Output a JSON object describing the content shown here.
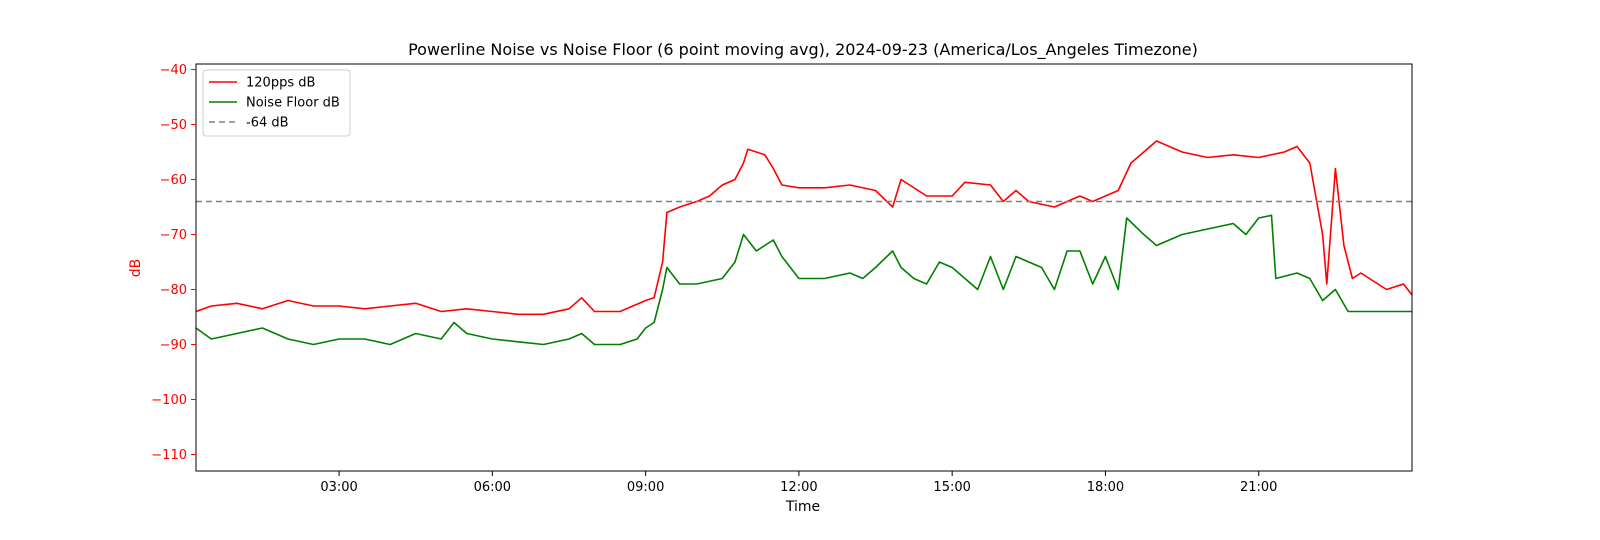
{
  "chart_data": {
    "type": "line",
    "title": "Powerline Noise vs Noise Floor (6 point moving avg), 2024-09-23 (America/Los_Angeles Timezone)",
    "xlabel": "Time",
    "ylabel": "dB",
    "ylabel_color": "#ff0000",
    "xlim": [
      "00:12",
      "24:00"
    ],
    "ylim": [
      -113,
      -39
    ],
    "x_ticks": [
      "03:00",
      "06:00",
      "09:00",
      "12:00",
      "15:00",
      "18:00",
      "21:00"
    ],
    "y_ticks": [
      -40,
      -50,
      -60,
      -70,
      -80,
      -90,
      -100,
      -110
    ],
    "grid": false,
    "legend_position": "top-left",
    "series": [
      {
        "name": "120pps dB",
        "color": "#ff0000",
        "style": "solid",
        "points": [
          [
            "00:12",
            -84
          ],
          [
            "00:30",
            -83
          ],
          [
            "01:00",
            -82.5
          ],
          [
            "01:30",
            -83.5
          ],
          [
            "02:00",
            -82
          ],
          [
            "02:30",
            -83
          ],
          [
            "03:00",
            -83
          ],
          [
            "03:30",
            -83.5
          ],
          [
            "04:00",
            -83
          ],
          [
            "04:30",
            -82.5
          ],
          [
            "05:00",
            -84
          ],
          [
            "05:30",
            -83.5
          ],
          [
            "06:00",
            -84
          ],
          [
            "06:30",
            -84.5
          ],
          [
            "07:00",
            -84.5
          ],
          [
            "07:30",
            -83.5
          ],
          [
            "07:45",
            -81.5
          ],
          [
            "08:00",
            -84
          ],
          [
            "08:30",
            -84
          ],
          [
            "09:00",
            -82
          ],
          [
            "09:10",
            -81.5
          ],
          [
            "09:20",
            -75
          ],
          [
            "09:25",
            -66
          ],
          [
            "09:40",
            -65
          ],
          [
            "10:00",
            -64
          ],
          [
            "10:15",
            -63
          ],
          [
            "10:30",
            -61
          ],
          [
            "10:45",
            -60
          ],
          [
            "10:55",
            -57
          ],
          [
            "11:00",
            -54.5
          ],
          [
            "11:20",
            -55.5
          ],
          [
            "11:30",
            -58
          ],
          [
            "11:40",
            -61
          ],
          [
            "12:00",
            -61.5
          ],
          [
            "12:30",
            -61.5
          ],
          [
            "13:00",
            -61
          ],
          [
            "13:30",
            -62
          ],
          [
            "13:50",
            -65
          ],
          [
            "14:00",
            -60
          ],
          [
            "14:30",
            -63
          ],
          [
            "15:00",
            -63
          ],
          [
            "15:15",
            -60.5
          ],
          [
            "15:45",
            -61
          ],
          [
            "16:00",
            -64
          ],
          [
            "16:15",
            -62
          ],
          [
            "16:30",
            -64
          ],
          [
            "17:00",
            -65
          ],
          [
            "17:30",
            -63
          ],
          [
            "17:45",
            -64
          ],
          [
            "18:00",
            -63
          ],
          [
            "18:15",
            -62
          ],
          [
            "18:30",
            -57
          ],
          [
            "18:45",
            -55
          ],
          [
            "19:00",
            -53
          ],
          [
            "19:30",
            -55
          ],
          [
            "20:00",
            -56
          ],
          [
            "20:30",
            -55.5
          ],
          [
            "21:00",
            -56
          ],
          [
            "21:30",
            -55
          ],
          [
            "21:45",
            -54
          ],
          [
            "22:00",
            -57
          ],
          [
            "22:15",
            -70
          ],
          [
            "22:20",
            -79
          ],
          [
            "22:30",
            -58
          ],
          [
            "22:40",
            -72
          ],
          [
            "22:50",
            -78
          ],
          [
            "23:00",
            -77
          ],
          [
            "23:30",
            -80
          ],
          [
            "23:50",
            -79
          ],
          [
            "24:00",
            -81
          ]
        ]
      },
      {
        "name": "Noise Floor dB",
        "color": "#008000",
        "style": "solid",
        "points": [
          [
            "00:12",
            -87
          ],
          [
            "00:30",
            -89
          ],
          [
            "01:00",
            -88
          ],
          [
            "01:30",
            -87
          ],
          [
            "02:00",
            -89
          ],
          [
            "02:30",
            -90
          ],
          [
            "03:00",
            -89
          ],
          [
            "03:30",
            -89
          ],
          [
            "04:00",
            -90
          ],
          [
            "04:30",
            -88
          ],
          [
            "05:00",
            -89
          ],
          [
            "05:15",
            -86
          ],
          [
            "05:30",
            -88
          ],
          [
            "06:00",
            -89
          ],
          [
            "06:30",
            -89.5
          ],
          [
            "07:00",
            -90
          ],
          [
            "07:30",
            -89
          ],
          [
            "07:45",
            -88
          ],
          [
            "08:00",
            -90
          ],
          [
            "08:30",
            -90
          ],
          [
            "08:50",
            -89
          ],
          [
            "09:00",
            -87
          ],
          [
            "09:10",
            -86
          ],
          [
            "09:20",
            -80
          ],
          [
            "09:25",
            -76
          ],
          [
            "09:40",
            -79
          ],
          [
            "10:00",
            -79
          ],
          [
            "10:30",
            -78
          ],
          [
            "10:45",
            -75
          ],
          [
            "10:55",
            -70
          ],
          [
            "11:10",
            -73
          ],
          [
            "11:30",
            -71
          ],
          [
            "11:40",
            -74
          ],
          [
            "12:00",
            -78
          ],
          [
            "12:30",
            -78
          ],
          [
            "13:00",
            -77
          ],
          [
            "13:15",
            -78
          ],
          [
            "13:30",
            -76
          ],
          [
            "13:50",
            -73
          ],
          [
            "14:00",
            -76
          ],
          [
            "14:15",
            -78
          ],
          [
            "14:30",
            -79
          ],
          [
            "14:45",
            -75
          ],
          [
            "15:00",
            -76
          ],
          [
            "15:30",
            -80
          ],
          [
            "15:45",
            -74
          ],
          [
            "16:00",
            -80
          ],
          [
            "16:15",
            -74
          ],
          [
            "16:30",
            -75
          ],
          [
            "16:45",
            -76
          ],
          [
            "17:00",
            -80
          ],
          [
            "17:15",
            -73
          ],
          [
            "17:30",
            -73
          ],
          [
            "17:45",
            -79
          ],
          [
            "18:00",
            -74
          ],
          [
            "18:15",
            -80
          ],
          [
            "18:25",
            -67
          ],
          [
            "18:45",
            -70
          ],
          [
            "19:00",
            -72
          ],
          [
            "19:30",
            -70
          ],
          [
            "20:00",
            -69
          ],
          [
            "20:30",
            -68
          ],
          [
            "20:45",
            -70
          ],
          [
            "21:00",
            -67
          ],
          [
            "21:15",
            -66.5
          ],
          [
            "21:20",
            -78
          ],
          [
            "21:45",
            -77
          ],
          [
            "22:00",
            -78
          ],
          [
            "22:15",
            -82
          ],
          [
            "22:30",
            -80
          ],
          [
            "22:45",
            -84
          ],
          [
            "23:00",
            -84
          ],
          [
            "24:00",
            -84
          ]
        ]
      },
      {
        "name": "-64 dB",
        "color": "#808080",
        "style": "dashed",
        "points": [
          [
            "00:12",
            -64
          ],
          [
            "24:00",
            -64
          ]
        ]
      }
    ]
  }
}
